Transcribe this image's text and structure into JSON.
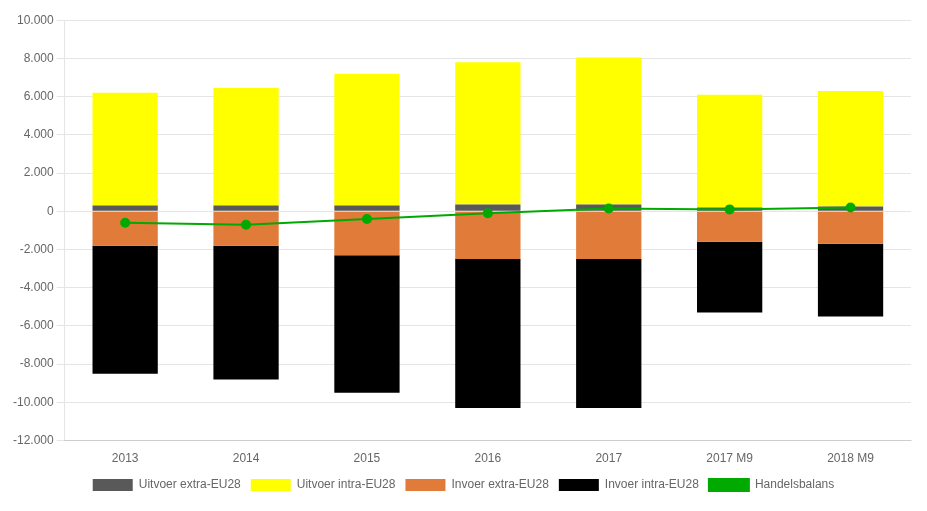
{
  "chart_data": {
    "type": "bar",
    "stacked": true,
    "grid": true,
    "legend": "bottom",
    "categories": [
      "2013",
      "2014",
      "2015",
      "2016",
      "2017",
      "2017 M9",
      "2018 M9"
    ],
    "series": [
      {
        "name": "Uitvoer extra-EU28",
        "type": "bar",
        "color": "#595959",
        "values": [
          300,
          300,
          300,
          350,
          350,
          200,
          250
        ]
      },
      {
        "name": "Uitvoer intra-EU28",
        "type": "bar",
        "color": "#ffff00",
        "values": [
          5900,
          6150,
          6900,
          7450,
          7700,
          5900,
          6050
        ]
      },
      {
        "name": "Invoer extra-EU28",
        "type": "bar",
        "color": "#e07b39",
        "values": [
          -1800,
          -1800,
          -2300,
          -2500,
          -2500,
          -1600,
          -1700
        ]
      },
      {
        "name": "Invoer intra-EU28",
        "type": "bar",
        "color": "#000000",
        "values": [
          -6700,
          -7000,
          -7200,
          -7800,
          -7800,
          -3700,
          -3800
        ]
      },
      {
        "name": "Handelsbalans",
        "type": "line",
        "color": "#00aa00",
        "marker": "circle",
        "values": [
          -600,
          -700,
          -400,
          -100,
          150,
          100,
          200
        ]
      }
    ],
    "ylim": [
      -12000,
      10000
    ],
    "yticks": [
      {
        "value": -12000,
        "label": "-12.000"
      },
      {
        "value": -10000,
        "label": "-10.000"
      },
      {
        "value": -8000,
        "label": "-8.000"
      },
      {
        "value": -6000,
        "label": "-6.000"
      },
      {
        "value": -4000,
        "label": "-4.000"
      },
      {
        "value": -2000,
        "label": "-2.000"
      },
      0,
      {
        "value": 2000,
        "label": "2.000"
      },
      {
        "value": 4000,
        "label": "4.000"
      },
      {
        "value": 6000,
        "label": "6.000"
      },
      {
        "value": 8000,
        "label": "8.000"
      },
      {
        "value": 10000,
        "label": "10.000"
      }
    ]
  }
}
